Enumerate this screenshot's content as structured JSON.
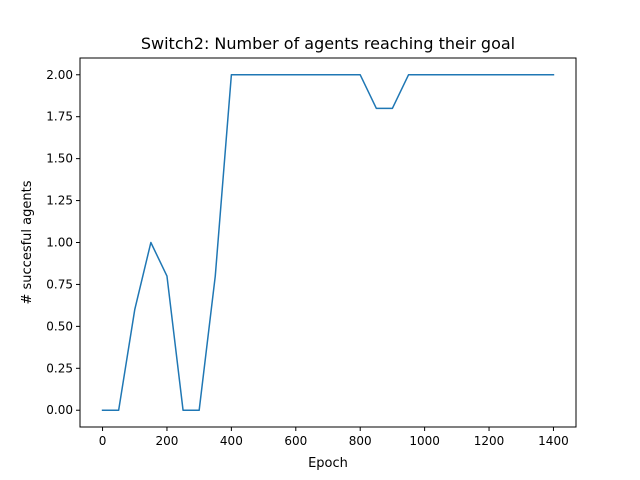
{
  "chart_data": {
    "type": "line",
    "title": "Switch2: Number of agents reaching their goal",
    "xlabel": "Epoch",
    "ylabel": "# succesful agents",
    "x": [
      0,
      50,
      100,
      150,
      200,
      250,
      300,
      350,
      400,
      450,
      500,
      550,
      600,
      650,
      700,
      750,
      800,
      850,
      900,
      950,
      1000,
      1050,
      1100,
      1150,
      1200,
      1250,
      1300,
      1350,
      1400
    ],
    "series": [
      {
        "values": [
          0,
          0,
          0.6,
          1.0,
          0.8,
          0,
          0,
          0.8,
          2.0,
          2.0,
          2.0,
          2.0,
          2.0,
          2.0,
          2.0,
          2.0,
          2.0,
          1.8,
          1.8,
          2.0,
          2.0,
          2.0,
          2.0,
          2.0,
          2.0,
          2.0,
          2.0,
          2.0,
          2.0
        ],
        "color": "#1f77b4"
      }
    ],
    "xlim": [
      -70,
      1470
    ],
    "ylim": [
      -0.1,
      2.1
    ],
    "xticks": [
      0,
      200,
      400,
      600,
      800,
      1000,
      1200,
      1400
    ],
    "xtick_labels": [
      "0",
      "200",
      "400",
      "600",
      "800",
      "1000",
      "1200",
      "1400"
    ],
    "yticks": [
      0,
      0.25,
      0.5,
      0.75,
      1.0,
      1.25,
      1.5,
      1.75,
      2.0
    ],
    "ytick_labels": [
      "0.00",
      "0.25",
      "0.50",
      "0.75",
      "1.00",
      "1.25",
      "1.50",
      "1.75",
      "2.00"
    ],
    "grid": false,
    "legend": "none"
  }
}
